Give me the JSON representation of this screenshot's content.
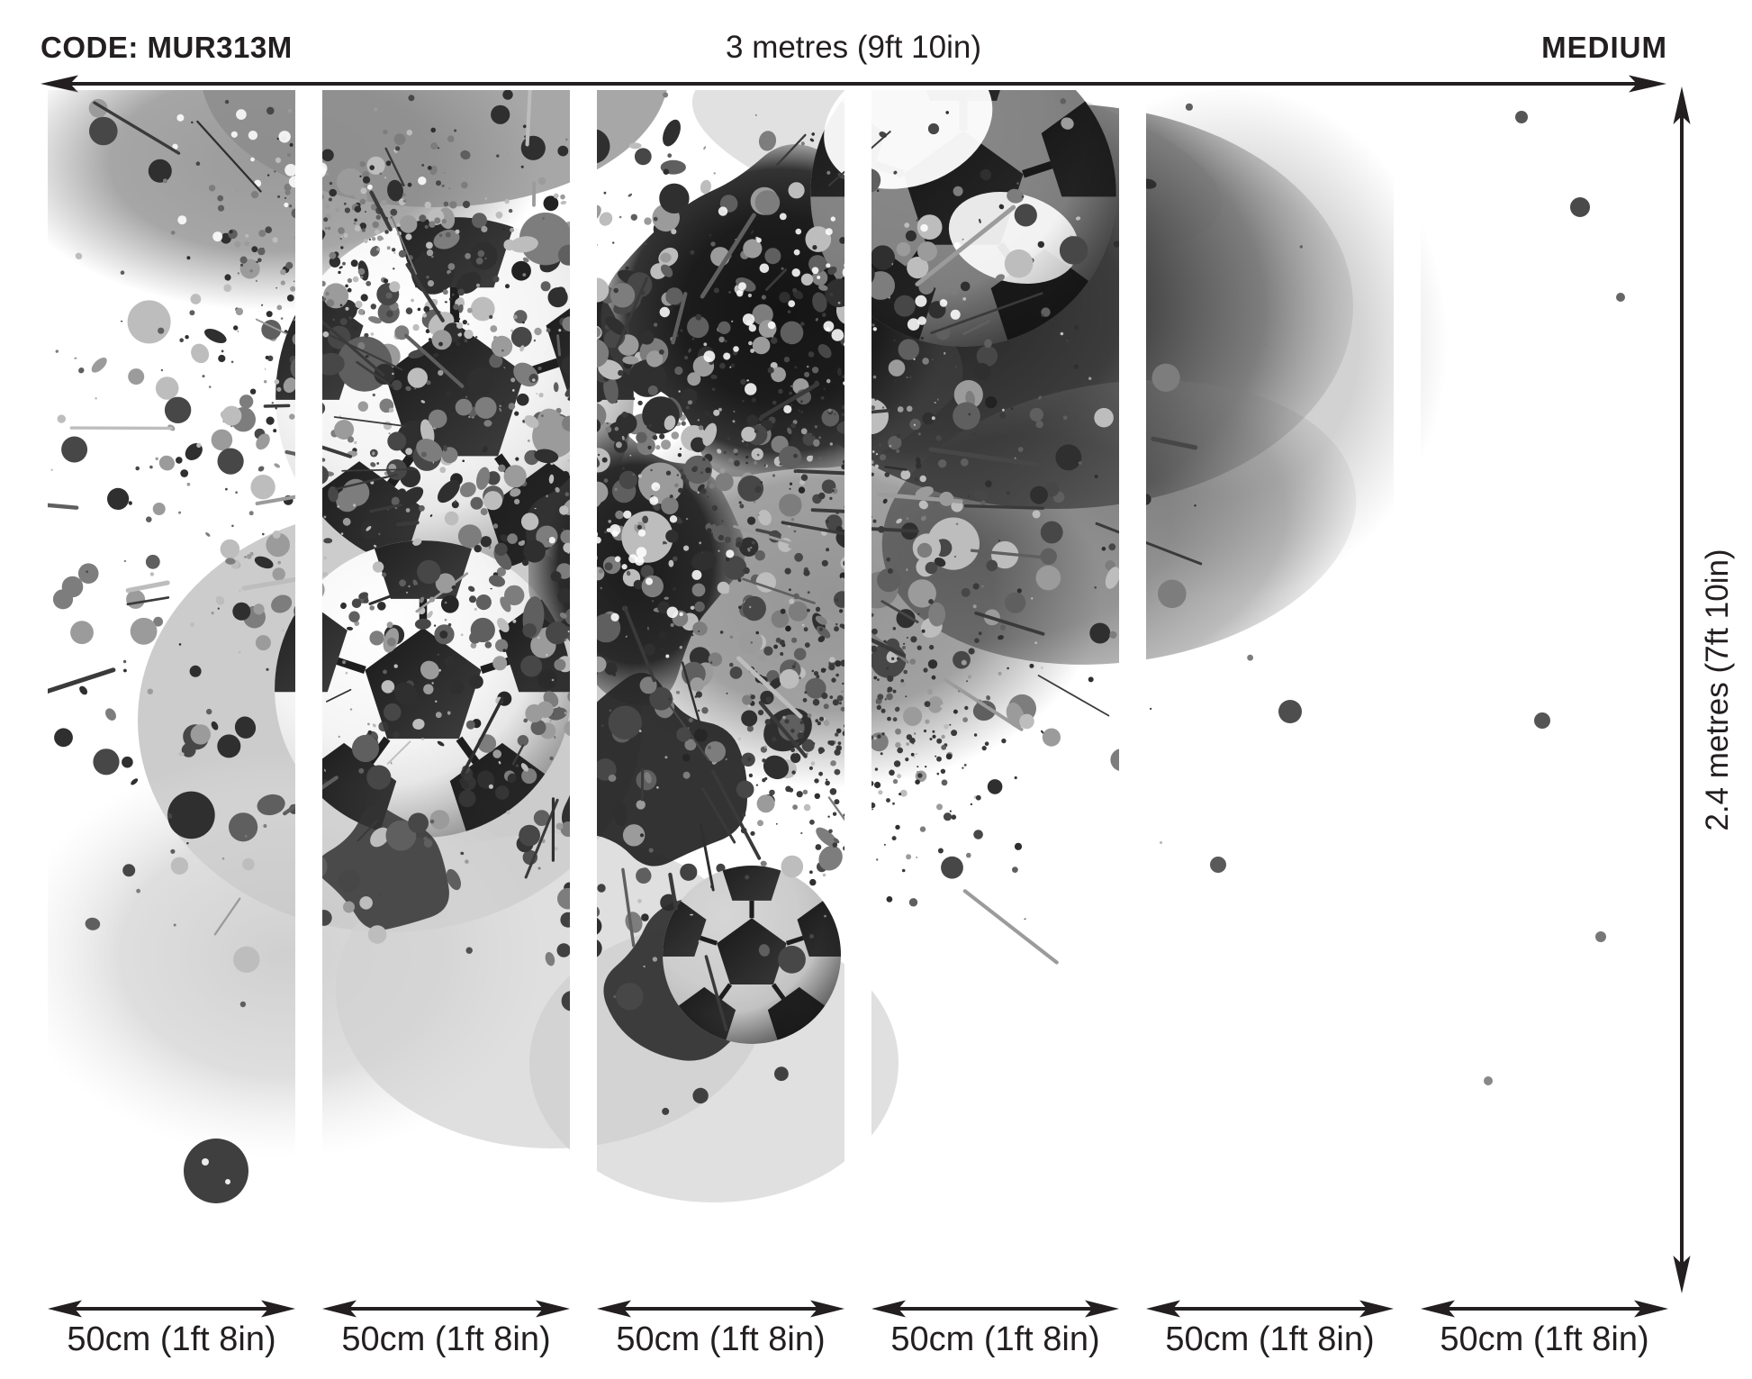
{
  "header": {
    "code": "CODE: MUR313M",
    "width_label": "3 metres (9ft 10in)",
    "size_label": "MEDIUM"
  },
  "height_label": "2.4 metres (7ft 10in)",
  "panels": [
    {
      "label": "50cm (1ft 8in)"
    },
    {
      "label": "50cm (1ft 8in)"
    },
    {
      "label": "50cm (1ft 8in)"
    },
    {
      "label": "50cm (1ft 8in)"
    },
    {
      "label": "50cm (1ft 8in)"
    },
    {
      "label": "50cm (1ft 8in)"
    }
  ],
  "colors": {
    "text": "#231f20",
    "arrow": "#231f20",
    "background": "#ffffff"
  }
}
